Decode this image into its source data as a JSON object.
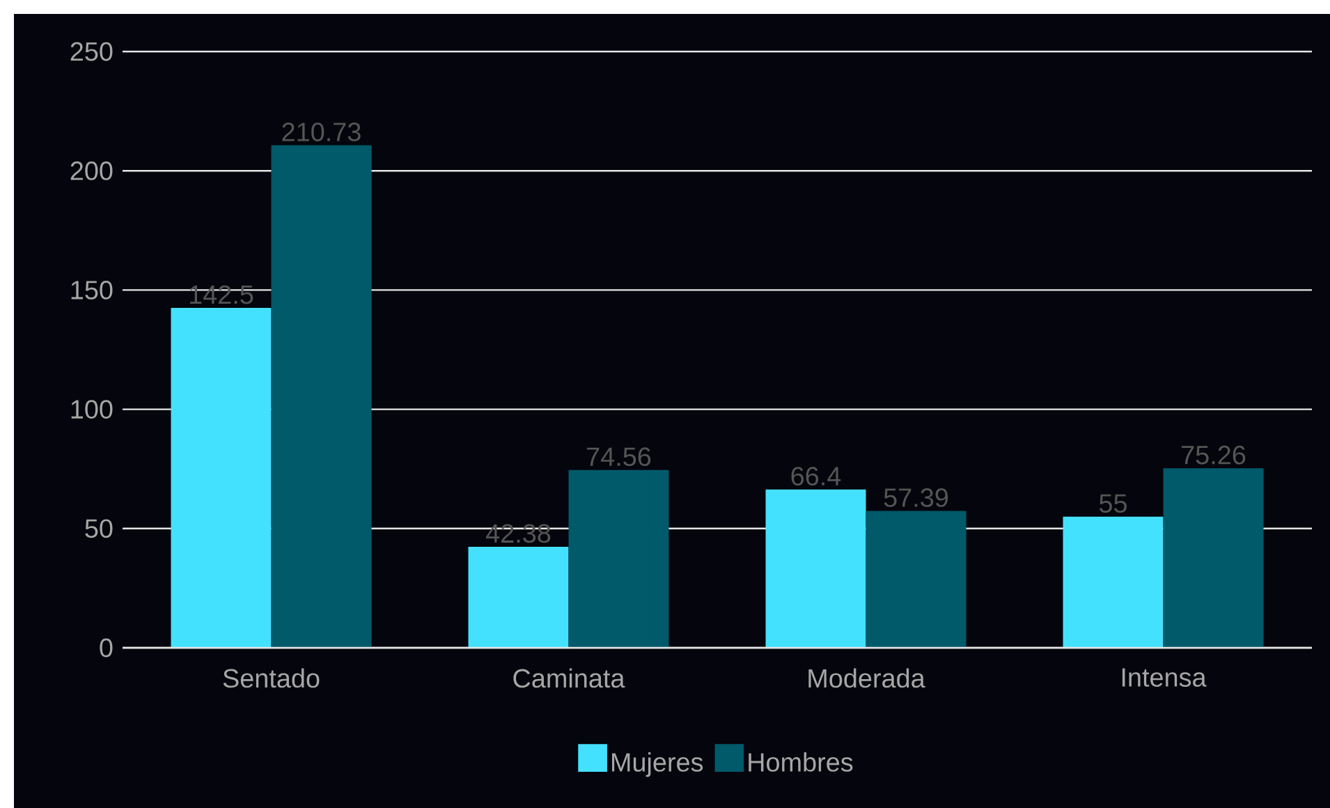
{
  "chart_data": {
    "type": "bar",
    "categories": [
      "Sentado",
      "Caminata",
      "Moderada",
      "Intensa"
    ],
    "series": [
      {
        "name": "Mujeres",
        "color": "#44e1ff",
        "values": [
          142.5,
          42.38,
          66.4,
          55
        ]
      },
      {
        "name": "Hombres",
        "color": "#005a6a",
        "values": [
          210.73,
          74.56,
          57.39,
          75.26
        ]
      }
    ],
    "ylim": [
      0,
      250
    ],
    "yticks": [
      0,
      50,
      100,
      150,
      200,
      250
    ],
    "grid": "y",
    "legend": "bottom",
    "data_labels": true
  }
}
